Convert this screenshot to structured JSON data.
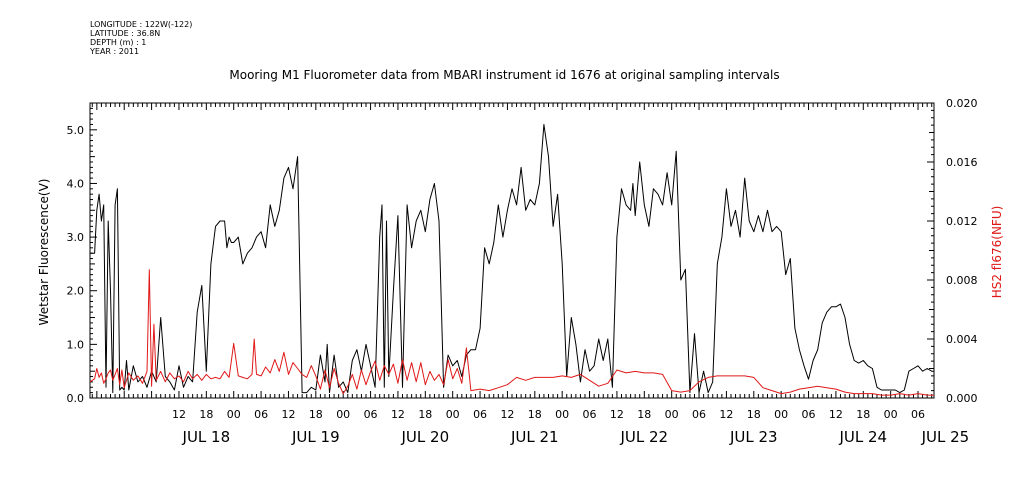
{
  "meta": {
    "longitude": "LONGITUDE : 122W(-122)",
    "latitude": "LATITUDE : 36.8N",
    "depth": "DEPTH (m) : 1",
    "year": "YEAR : 2011"
  },
  "chart_data": {
    "type": "line",
    "title": "Mooring M1 Fluorometer data from MBARI instrument id 1676 at original sampling intervals",
    "x_unit": "hours since JUL 18 00:00 2011",
    "xlim": [
      -7.5,
      177.5
    ],
    "x_hour_ticks": [
      12,
      18,
      0,
      6,
      12,
      18,
      0,
      6,
      12,
      18,
      0,
      6,
      12,
      18,
      0,
      6,
      12,
      18,
      0,
      6,
      12,
      18,
      0,
      6,
      12,
      18,
      0,
      6
    ],
    "x_tick_values": [
      12,
      18,
      24,
      30,
      36,
      42,
      48,
      54,
      60,
      66,
      72,
      78,
      84,
      90,
      96,
      102,
      108,
      114,
      120,
      126,
      132,
      138,
      144,
      150,
      156,
      162,
      168,
      174
    ],
    "x_day_labels": [
      "JUL 18",
      "JUL 19",
      "JUL 20",
      "JUL 21",
      "JUL 22",
      "JUL 23",
      "JUL 24",
      "JUL 25"
    ],
    "x_day_label_values": [
      18,
      42,
      66,
      90,
      114,
      138,
      162,
      180
    ],
    "y_left": {
      "label": "Wetstar Fluorescence(V)",
      "lim": [
        0,
        5.5
      ],
      "ticks": [
        "0.0",
        "1.0",
        "2.0",
        "3.0",
        "4.0",
        "5.0"
      ],
      "tick_values": [
        0,
        1,
        2,
        3,
        4,
        5
      ]
    },
    "y_right": {
      "label": "HS2 fl676(NFU)",
      "lim": [
        0,
        0.02
      ],
      "ticks": [
        "0.000",
        "0.004",
        "0.008",
        "0.012",
        "0.016",
        "0.020"
      ],
      "tick_values": [
        0,
        0.004,
        0.008,
        0.012,
        0.016,
        0.02
      ],
      "color": "#e01818"
    },
    "series": [
      {
        "axis": "left",
        "color": "#000000",
        "x": [
          -7.5,
          -6.5,
          -6,
          -5.5,
          -5,
          -4.5,
          -4,
          -3.5,
          -3,
          -2.5,
          -2,
          -1.5,
          -1,
          -0.5,
          0,
          0.5,
          1,
          2,
          3,
          4,
          5,
          6,
          7,
          8,
          9,
          10,
          11,
          12,
          13,
          14,
          15,
          16,
          17,
          18,
          19,
          20,
          21,
          22,
          22.5,
          23,
          23.5,
          24,
          25,
          26,
          27,
          28,
          29,
          30,
          31,
          32,
          33,
          34,
          35,
          36,
          37,
          38,
          39,
          39.5,
          40,
          41,
          42,
          43,
          44,
          44.5,
          45,
          46,
          47,
          48,
          49,
          50,
          51,
          52,
          53,
          54,
          55,
          56,
          56.5,
          57,
          57.5,
          58,
          59,
          60,
          61,
          62,
          63,
          64,
          65,
          66,
          67,
          68,
          69,
          70,
          71,
          72,
          73,
          74,
          75,
          76,
          77,
          78,
          79,
          80,
          81,
          82,
          83,
          84,
          85,
          86,
          87,
          88,
          88.5,
          89,
          90,
          91,
          92,
          93,
          94,
          95,
          96,
          97,
          98,
          99,
          100,
          101,
          102,
          103,
          104,
          105,
          106,
          107,
          108,
          109,
          110,
          111,
          111.5,
          112,
          113,
          114,
          115,
          116,
          117,
          118,
          119,
          120,
          121,
          122,
          123,
          124,
          125,
          126,
          127,
          128,
          129,
          130,
          131,
          132,
          133,
          134,
          135,
          136,
          137,
          138,
          139,
          140,
          141,
          142,
          143,
          144,
          145,
          146,
          147,
          148,
          149,
          150,
          151,
          152,
          153,
          154,
          155,
          156,
          157,
          158,
          159,
          160,
          161,
          162,
          163,
          164,
          165,
          166,
          167,
          168,
          169,
          170,
          171,
          172,
          173,
          174,
          175,
          176,
          177,
          177.5
        ],
        "values": [
          2.7,
          2.7,
          3.5,
          3.8,
          3.3,
          3.6,
          0.2,
          3.3,
          2.0,
          0.1,
          3.6,
          3.9,
          0.15,
          0.2,
          0.15,
          0.7,
          0.15,
          0.6,
          0.3,
          0.4,
          0.2,
          0.5,
          0.3,
          1.5,
          0.4,
          0.3,
          0.15,
          0.6,
          0.2,
          0.4,
          0.3,
          1.6,
          2.1,
          0.5,
          2.5,
          3.2,
          3.3,
          3.3,
          2.8,
          3.0,
          2.9,
          2.9,
          3.0,
          2.5,
          2.7,
          2.8,
          3.0,
          3.1,
          2.8,
          3.6,
          3.2,
          3.5,
          4.1,
          4.3,
          3.9,
          4.5,
          0.1,
          0.1,
          0.1,
          0.2,
          0.15,
          0.8,
          0.3,
          1.0,
          0.1,
          0.8,
          0.2,
          0.3,
          0.1,
          0.7,
          0.9,
          0.5,
          1.0,
          0.6,
          0.2,
          3.0,
          3.6,
          0.2,
          3.3,
          0.4,
          2.0,
          3.4,
          0.2,
          3.6,
          2.8,
          3.3,
          3.5,
          3.1,
          3.7,
          4.0,
          3.3,
          0.2,
          0.8,
          0.6,
          0.7,
          0.4,
          0.8,
          0.9,
          0.9,
          1.3,
          2.8,
          2.5,
          2.9,
          3.6,
          3.0,
          3.5,
          3.9,
          3.6,
          4.3,
          3.5,
          3.6,
          3.7,
          3.6,
          4.0,
          5.1,
          4.5,
          3.2,
          3.8,
          2.5,
          0.4,
          1.5,
          1.0,
          0.3,
          0.9,
          0.5,
          0.6,
          1.1,
          0.7,
          1.1,
          0.2,
          3.0,
          3.9,
          3.6,
          3.5,
          4.0,
          3.4,
          4.4,
          3.6,
          3.2,
          3.9,
          3.8,
          3.6,
          4.2,
          3.6,
          4.6,
          2.2,
          2.4,
          0.1,
          1.2,
          0.1,
          0.5,
          0.1,
          0.3,
          2.5,
          3.0,
          3.9,
          3.2,
          3.5,
          3.0,
          4.1,
          3.3,
          3.1,
          3.4,
          3.1,
          3.5,
          3.1,
          3.2,
          3.1,
          2.3,
          2.6,
          1.3,
          0.9,
          0.6,
          0.35,
          0.7,
          0.9,
          1.4,
          1.6,
          1.7,
          1.7,
          1.75,
          1.5,
          1.0,
          0.7,
          0.65,
          0.7,
          0.6,
          0.55,
          0.2,
          0.15,
          0.15,
          0.15,
          0.15,
          0.1,
          0.15,
          0.5,
          0.55,
          0.6,
          0.5,
          0.55,
          0.5,
          0.5
        ]
      },
      {
        "axis": "right",
        "color": "#e01818",
        "x": [
          -7.5,
          -6.5,
          -6,
          -5.5,
          -5,
          -4.5,
          -4,
          -3.5,
          -3,
          -2.5,
          -2,
          -1.5,
          -1,
          -0.5,
          0,
          1,
          2,
          3,
          4,
          5,
          5.5,
          6,
          6.5,
          7,
          8,
          9,
          10,
          11,
          12,
          13,
          14,
          15,
          16,
          17,
          18,
          19,
          20,
          21,
          22,
          23,
          24,
          25,
          26,
          27,
          28,
          28.5,
          29,
          30,
          31,
          32,
          33,
          34,
          35,
          36,
          37,
          38,
          39,
          40,
          41,
          42,
          43,
          44,
          45,
          46,
          47,
          48,
          49,
          50,
          51,
          52,
          53,
          54,
          55,
          56,
          57,
          58,
          59,
          60,
          61,
          62,
          63,
          64,
          65,
          66,
          67,
          68,
          69,
          70,
          71,
          72,
          73,
          74,
          75,
          76,
          78,
          80,
          82,
          84,
          86,
          88,
          90,
          92,
          94,
          96,
          98,
          100,
          102,
          104,
          106,
          108,
          110,
          112,
          114,
          116,
          118,
          120,
          122,
          124,
          126,
          128,
          130,
          132,
          134,
          136,
          138,
          140,
          142,
          144,
          146,
          148,
          150,
          152,
          154,
          156,
          158,
          160,
          162,
          164,
          166,
          168,
          170,
          172,
          174,
          176,
          177.5
        ],
        "values": [
          0.0011,
          0.0013,
          0.002,
          0.0014,
          0.0017,
          0.001,
          0.0013,
          0.0017,
          0.0019,
          0.0012,
          0.0016,
          0.002,
          0.0009,
          0.0019,
          0.0007,
          0.0017,
          0.0012,
          0.0015,
          0.001,
          0.0018,
          0.0087,
          0.0008,
          0.005,
          0.0012,
          0.0018,
          0.0011,
          0.0017,
          0.0013,
          0.0015,
          0.0011,
          0.0018,
          0.0013,
          0.0016,
          0.0012,
          0.0016,
          0.0013,
          0.0014,
          0.0013,
          0.0018,
          0.0014,
          0.0037,
          0.0015,
          0.0014,
          0.0013,
          0.0016,
          0.004,
          0.0016,
          0.0015,
          0.0021,
          0.0017,
          0.0026,
          0.0018,
          0.0031,
          0.0016,
          0.0024,
          0.002,
          0.0016,
          0.0014,
          0.0022,
          0.0015,
          0.0006,
          0.0019,
          0.0007,
          0.002,
          0.001,
          0.0003,
          0.0008,
          0.0016,
          0.0006,
          0.0019,
          0.0009,
          0.0018,
          0.0025,
          0.0012,
          0.0022,
          0.0016,
          0.0023,
          0.001,
          0.0026,
          0.0012,
          0.0024,
          0.0011,
          0.0024,
          0.0009,
          0.0018,
          0.0012,
          0.0016,
          0.0009,
          0.0026,
          0.0013,
          0.002,
          0.001,
          0.0034,
          0.0005,
          0.0006,
          0.0005,
          0.0007,
          0.0009,
          0.0014,
          0.0012,
          0.0014,
          0.0014,
          0.0014,
          0.0015,
          0.0014,
          0.0016,
          0.0012,
          0.0008,
          0.001,
          0.0019,
          0.0017,
          0.0018,
          0.0017,
          0.0017,
          0.0016,
          0.0005,
          0.0004,
          0.0005,
          0.0011,
          0.0014,
          0.0015,
          0.0015,
          0.0015,
          0.0015,
          0.0014,
          0.0007,
          0.0005,
          0.0003,
          0.0004,
          0.0006,
          0.0007,
          0.0008,
          0.0007,
          0.0006,
          0.0004,
          0.0003,
          0.0003,
          0.0003,
          0.0002,
          0.0002,
          0.0003,
          0.0002,
          0.0003,
          0.0002,
          0.0002
        ]
      }
    ]
  }
}
